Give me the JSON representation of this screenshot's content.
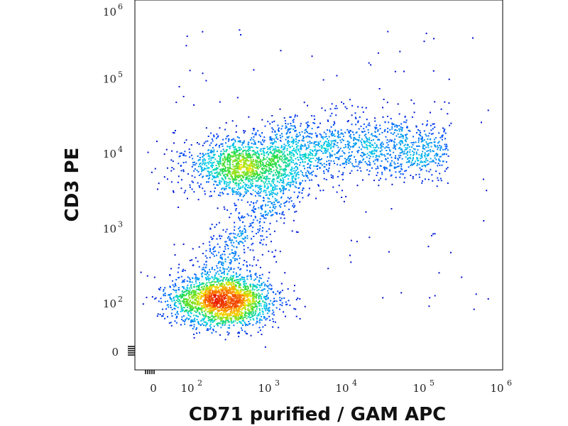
{
  "chart_data": {
    "type": "scatter",
    "title": "",
    "xlabel": "CD71 purified / GAM APC",
    "ylabel": "CD3 PE",
    "x_scale": "biexponential",
    "y_scale": "biexponential",
    "xlim": [
      0,
      1000000
    ],
    "ylim": [
      0,
      1000000
    ],
    "x_ticks": [
      {
        "value": 0,
        "base": "0",
        "exp": ""
      },
      {
        "value": 100,
        "base": "10",
        "exp": "2"
      },
      {
        "value": 1000,
        "base": "10",
        "exp": "3"
      },
      {
        "value": 10000,
        "base": "10",
        "exp": "4"
      },
      {
        "value": 100000,
        "base": "10",
        "exp": "5"
      },
      {
        "value": 1000000,
        "base": "10",
        "exp": "6"
      }
    ],
    "y_ticks": [
      {
        "value": 0,
        "base": "0",
        "exp": ""
      },
      {
        "value": 100,
        "base": "10",
        "exp": "2"
      },
      {
        "value": 1000,
        "base": "10",
        "exp": "3"
      },
      {
        "value": 10000,
        "base": "10",
        "exp": "4"
      },
      {
        "value": 100000,
        "base": "10",
        "exp": "5"
      },
      {
        "value": 1000000,
        "base": "10",
        "exp": "6"
      }
    ],
    "grid": false,
    "legend": "none",
    "color_scale": "density (blue-cyan-green-yellow-red)",
    "populations": [
      {
        "x_center": 250,
        "y_center": 110,
        "relative_density": 1.0
      },
      {
        "x_center": 450,
        "y_center": 7000,
        "relative_density": 0.55
      },
      {
        "x_range": [
          1000,
          200000
        ],
        "y_center": 12000,
        "relative_density": 0.25
      },
      {
        "x_range": [
          300,
          1500
        ],
        "y_range": [
          300,
          5000
        ],
        "relative_density": 0.12
      }
    ]
  }
}
